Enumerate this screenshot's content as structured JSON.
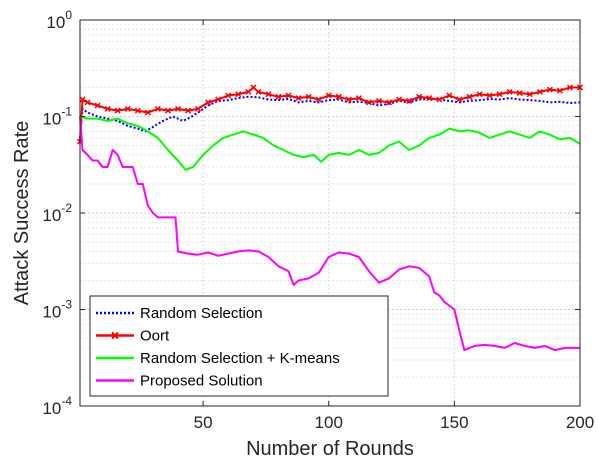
{
  "chart_data": {
    "type": "line",
    "xlabel": "Number of Rounds",
    "ylabel": "Attack Success Rate",
    "xlim": [
      1,
      200
    ],
    "ylim": [
      0.0001,
      1
    ],
    "yscale": "log",
    "grid": true,
    "legend_position": "bottom-left",
    "x_ticks": [
      50,
      100,
      150,
      200
    ],
    "x_tick_labels": [
      "50",
      "100",
      "150",
      "200"
    ],
    "y_ticks": [
      0.0001,
      0.001,
      0.01,
      0.1,
      1
    ],
    "y_tick_labels": [
      {
        "base": "10",
        "exp": "-4"
      },
      {
        "base": "10",
        "exp": "-3"
      },
      {
        "base": "10",
        "exp": "-2"
      },
      {
        "base": "10",
        "exp": "-1"
      },
      {
        "base": "10",
        "exp": "0"
      }
    ],
    "series": [
      {
        "name": "Random Selection",
        "color": "#0000ff",
        "style": "dotted",
        "marker": "none",
        "points": [
          [
            1,
            0.06
          ],
          [
            2,
            0.12
          ],
          [
            4,
            0.11
          ],
          [
            8,
            0.1
          ],
          [
            12,
            0.095
          ],
          [
            16,
            0.09
          ],
          [
            20,
            0.08
          ],
          [
            24,
            0.075
          ],
          [
            27,
            0.07
          ],
          [
            30,
            0.078
          ],
          [
            34,
            0.09
          ],
          [
            38,
            0.1
          ],
          [
            42,
            0.09
          ],
          [
            45,
            0.098
          ],
          [
            48,
            0.11
          ],
          [
            52,
            0.13
          ],
          [
            56,
            0.145
          ],
          [
            60,
            0.148
          ],
          [
            64,
            0.155
          ],
          [
            68,
            0.16
          ],
          [
            72,
            0.158
          ],
          [
            76,
            0.15
          ],
          [
            80,
            0.148
          ],
          [
            84,
            0.152
          ],
          [
            88,
            0.14
          ],
          [
            92,
            0.145
          ],
          [
            96,
            0.14
          ],
          [
            100,
            0.148
          ],
          [
            104,
            0.15
          ],
          [
            108,
            0.14
          ],
          [
            112,
            0.142
          ],
          [
            116,
            0.138
          ],
          [
            120,
            0.13
          ],
          [
            124,
            0.135
          ],
          [
            128,
            0.145
          ],
          [
            132,
            0.14
          ],
          [
            136,
            0.15
          ],
          [
            140,
            0.152
          ],
          [
            144,
            0.15
          ],
          [
            148,
            0.145
          ],
          [
            152,
            0.14
          ],
          [
            156,
            0.145
          ],
          [
            160,
            0.148
          ],
          [
            164,
            0.152
          ],
          [
            168,
            0.15
          ],
          [
            172,
            0.155
          ],
          [
            176,
            0.15
          ],
          [
            180,
            0.148
          ],
          [
            184,
            0.145
          ],
          [
            188,
            0.14
          ],
          [
            192,
            0.142
          ],
          [
            196,
            0.138
          ],
          [
            200,
            0.14
          ]
        ]
      },
      {
        "name": "Oort",
        "color": "#ff0000",
        "style": "solid",
        "marker": "x",
        "points": [
          [
            1,
            0.055
          ],
          [
            2,
            0.15
          ],
          [
            4,
            0.14
          ],
          [
            8,
            0.13
          ],
          [
            12,
            0.12
          ],
          [
            16,
            0.115
          ],
          [
            20,
            0.12
          ],
          [
            24,
            0.115
          ],
          [
            28,
            0.11
          ],
          [
            32,
            0.12
          ],
          [
            36,
            0.115
          ],
          [
            40,
            0.12
          ],
          [
            44,
            0.115
          ],
          [
            48,
            0.12
          ],
          [
            52,
            0.14
          ],
          [
            56,
            0.15
          ],
          [
            60,
            0.165
          ],
          [
            64,
            0.17
          ],
          [
            68,
            0.18
          ],
          [
            70,
            0.2
          ],
          [
            72,
            0.18
          ],
          [
            76,
            0.17
          ],
          [
            80,
            0.16
          ],
          [
            84,
            0.165
          ],
          [
            88,
            0.155
          ],
          [
            92,
            0.16
          ],
          [
            96,
            0.15
          ],
          [
            100,
            0.165
          ],
          [
            104,
            0.16
          ],
          [
            108,
            0.15
          ],
          [
            112,
            0.155
          ],
          [
            116,
            0.14
          ],
          [
            120,
            0.145
          ],
          [
            124,
            0.14
          ],
          [
            128,
            0.15
          ],
          [
            132,
            0.145
          ],
          [
            136,
            0.16
          ],
          [
            140,
            0.155
          ],
          [
            144,
            0.15
          ],
          [
            148,
            0.165
          ],
          [
            152,
            0.15
          ],
          [
            156,
            0.16
          ],
          [
            160,
            0.17
          ],
          [
            164,
            0.165
          ],
          [
            168,
            0.17
          ],
          [
            172,
            0.18
          ],
          [
            176,
            0.175
          ],
          [
            180,
            0.17
          ],
          [
            184,
            0.18
          ],
          [
            188,
            0.19
          ],
          [
            192,
            0.185
          ],
          [
            196,
            0.2
          ],
          [
            200,
            0.2
          ]
        ]
      },
      {
        "name": "Random Selection + K-means",
        "color": "#00ff00",
        "style": "solid",
        "marker": "none",
        "points": [
          [
            1,
            0.1
          ],
          [
            4,
            0.095
          ],
          [
            8,
            0.095
          ],
          [
            12,
            0.09
          ],
          [
            16,
            0.095
          ],
          [
            20,
            0.085
          ],
          [
            24,
            0.08
          ],
          [
            28,
            0.07
          ],
          [
            32,
            0.06
          ],
          [
            36,
            0.045
          ],
          [
            40,
            0.035
          ],
          [
            43,
            0.028
          ],
          [
            46,
            0.03
          ],
          [
            50,
            0.04
          ],
          [
            54,
            0.05
          ],
          [
            58,
            0.06
          ],
          [
            62,
            0.065
          ],
          [
            66,
            0.07
          ],
          [
            70,
            0.065
          ],
          [
            74,
            0.06
          ],
          [
            78,
            0.05
          ],
          [
            82,
            0.045
          ],
          [
            86,
            0.04
          ],
          [
            90,
            0.038
          ],
          [
            94,
            0.04
          ],
          [
            97,
            0.034
          ],
          [
            100,
            0.04
          ],
          [
            104,
            0.042
          ],
          [
            108,
            0.04
          ],
          [
            112,
            0.045
          ],
          [
            116,
            0.04
          ],
          [
            120,
            0.042
          ],
          [
            124,
            0.05
          ],
          [
            128,
            0.055
          ],
          [
            132,
            0.045
          ],
          [
            136,
            0.05
          ],
          [
            140,
            0.06
          ],
          [
            144,
            0.065
          ],
          [
            148,
            0.075
          ],
          [
            152,
            0.07
          ],
          [
            156,
            0.072
          ],
          [
            160,
            0.068
          ],
          [
            164,
            0.06
          ],
          [
            168,
            0.065
          ],
          [
            172,
            0.07
          ],
          [
            176,
            0.065
          ],
          [
            180,
            0.06
          ],
          [
            184,
            0.07
          ],
          [
            188,
            0.065
          ],
          [
            192,
            0.058
          ],
          [
            196,
            0.06
          ],
          [
            200,
            0.052
          ]
        ]
      },
      {
        "name": "Proposed Solution",
        "color": "#ff00ff",
        "style": "solid",
        "marker": "none",
        "points": [
          [
            1,
            0.1
          ],
          [
            2,
            0.045
          ],
          [
            4,
            0.04
          ],
          [
            6,
            0.035
          ],
          [
            8,
            0.035
          ],
          [
            10,
            0.03
          ],
          [
            12,
            0.03
          ],
          [
            14,
            0.045
          ],
          [
            16,
            0.04
          ],
          [
            18,
            0.03
          ],
          [
            20,
            0.03
          ],
          [
            22,
            0.03
          ],
          [
            24,
            0.02
          ],
          [
            26,
            0.02
          ],
          [
            28,
            0.012
          ],
          [
            30,
            0.01
          ],
          [
            32,
            0.009
          ],
          [
            36,
            0.009
          ],
          [
            39,
            0.009
          ],
          [
            40,
            0.004
          ],
          [
            44,
            0.0038
          ],
          [
            48,
            0.0037
          ],
          [
            52,
            0.0039
          ],
          [
            56,
            0.0036
          ],
          [
            60,
            0.0038
          ],
          [
            64,
            0.004
          ],
          [
            68,
            0.0041
          ],
          [
            72,
            0.004
          ],
          [
            76,
            0.0035
          ],
          [
            80,
            0.0028
          ],
          [
            84,
            0.0025
          ],
          [
            86,
            0.0018
          ],
          [
            88,
            0.002
          ],
          [
            92,
            0.0021
          ],
          [
            96,
            0.0024
          ],
          [
            100,
            0.0035
          ],
          [
            104,
            0.0039
          ],
          [
            108,
            0.0038
          ],
          [
            112,
            0.0035
          ],
          [
            116,
            0.0025
          ],
          [
            120,
            0.0019
          ],
          [
            124,
            0.0021
          ],
          [
            128,
            0.0026
          ],
          [
            132,
            0.0028
          ],
          [
            136,
            0.0027
          ],
          [
            140,
            0.0022
          ],
          [
            142,
            0.0015
          ],
          [
            144,
            0.0014
          ],
          [
            146,
            0.0012
          ],
          [
            150,
            0.001
          ],
          [
            152,
            0.0006
          ],
          [
            154,
            0.00038
          ],
          [
            158,
            0.00042
          ],
          [
            162,
            0.00043
          ],
          [
            166,
            0.00042
          ],
          [
            170,
            0.0004
          ],
          [
            174,
            0.00045
          ],
          [
            178,
            0.00042
          ],
          [
            182,
            0.0004
          ],
          [
            186,
            0.00042
          ],
          [
            190,
            0.00038
          ],
          [
            194,
            0.0004
          ],
          [
            200,
            0.0004
          ]
        ]
      }
    ]
  }
}
